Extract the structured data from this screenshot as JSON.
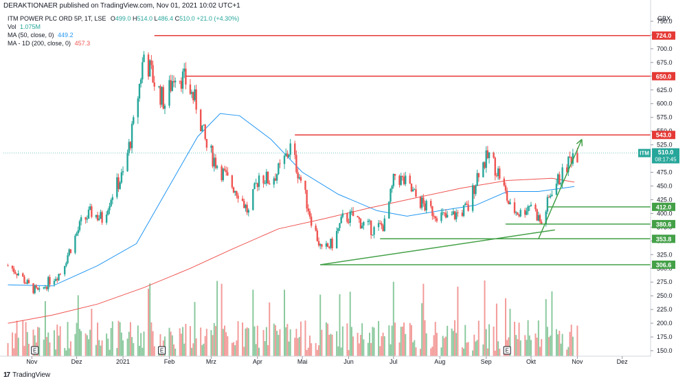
{
  "header": {
    "text": "DERAKTIONAER published on TradingView.com, Nov 01, 2021 10:02 UTC+1"
  },
  "legend": {
    "symbol": "ITM POWER PLC ORD 5P, 1T, LSE",
    "ohlc": {
      "open_label": "O",
      "open": "499.0",
      "high_label": "H",
      "high": "514.0",
      "low_label": "L",
      "low": "486.4",
      "close_label": "C",
      "close": "510.0",
      "change": "+21.0 (+4.30%)"
    },
    "vol_label": "Vol",
    "vol_value": "1.075M",
    "ma50_label": "MA (50, close, 0)",
    "ma50_value": "449.2",
    "ma200_label": "MA - 1D (200, close, 0)",
    "ma200_value": "457.3"
  },
  "currency": "GBX",
  "footer": {
    "brand": "TradingView",
    "logo": "17"
  },
  "colors": {
    "up": "#26a69a",
    "down": "#ef5350",
    "ma50": "#2196f3",
    "ma200": "#ef5350",
    "red_level": "#e53935",
    "green_level": "#43a047",
    "vol_up": "#8bc99e",
    "vol_down": "#f29b99"
  },
  "chart_data": {
    "type": "candlestick",
    "x_axis": {
      "ticks": [
        "Nov",
        "Dez",
        "2021",
        "Feb",
        "Mrz",
        "Apr",
        "Mai",
        "Jun",
        "Jul",
        "Aug",
        "Sep",
        "Okt",
        "Nov",
        "Dez"
      ]
    },
    "y_axis": {
      "range": [
        140,
        770
      ],
      "ticks": [
        750.0,
        725.0,
        700.0,
        675.0,
        650.0,
        625.0,
        600.0,
        575.0,
        550.0,
        525.0,
        475.0,
        450.0,
        425.0,
        400.0,
        375.0,
        350.0,
        325.0,
        300.0,
        275.0,
        250.0,
        225.0,
        200.0,
        175.0,
        150.0
      ]
    },
    "price_label": {
      "symbol": "ITM",
      "value": "510.0",
      "countdown": "08:17:45"
    },
    "resistance_levels": [
      {
        "value": 724.0,
        "label": "724.0",
        "from_date": "2021-01-22"
      },
      {
        "value": 650.0,
        "label": "650.0",
        "from_date": "2021-02-12"
      },
      {
        "value": 543.0,
        "label": "543.0",
        "from_date": "2021-04-26"
      }
    ],
    "support_levels": [
      {
        "value": 412.0,
        "label": "412.0",
        "from_date": "2021-10-12"
      },
      {
        "value": 380.6,
        "label": "380.6",
        "from_date": "2021-09-14"
      },
      {
        "value": 353.8,
        "label": "353.8",
        "from_date": "2021-06-22"
      },
      {
        "value": 306.6,
        "label": "306.6",
        "from_date": "2021-05-13"
      }
    ],
    "trendlines": [
      {
        "from": [
          "2021-05-13",
          306.6
        ],
        "to": [
          "2021-10-17",
          370
        ]
      },
      {
        "from": [
          "2021-10-06",
          353.8
        ],
        "to": [
          "2021-11-04",
          535
        ],
        "arrow": true
      }
    ],
    "event_markers": [
      {
        "label": "E",
        "date": "2020-11-03"
      },
      {
        "label": "E",
        "date": "2021-01-27"
      },
      {
        "label": "E",
        "date": "2021-09-15"
      }
    ],
    "closes": [
      {
        "d": "2020-10-16",
        "c": 305
      },
      {
        "d": "2020-10-23",
        "c": 292
      },
      {
        "d": "2020-10-30",
        "c": 268
      },
      {
        "d": "2020-11-06",
        "c": 255
      },
      {
        "d": "2020-11-13",
        "c": 278
      },
      {
        "d": "2020-11-20",
        "c": 292
      },
      {
        "d": "2020-11-27",
        "c": 338
      },
      {
        "d": "2020-12-04",
        "c": 382
      },
      {
        "d": "2020-12-11",
        "c": 402
      },
      {
        "d": "2020-12-18",
        "c": 390
      },
      {
        "d": "2020-12-25",
        "c": 438
      },
      {
        "d": "2021-01-01",
        "c": 470
      },
      {
        "d": "2021-01-08",
        "c": 560
      },
      {
        "d": "2021-01-15",
        "c": 690
      },
      {
        "d": "2021-01-22",
        "c": 640
      },
      {
        "d": "2021-01-29",
        "c": 600
      },
      {
        "d": "2021-02-05",
        "c": 660
      },
      {
        "d": "2021-02-12",
        "c": 640
      },
      {
        "d": "2021-02-19",
        "c": 600
      },
      {
        "d": "2021-02-26",
        "c": 520
      },
      {
        "d": "2021-03-05",
        "c": 490
      },
      {
        "d": "2021-03-12",
        "c": 460
      },
      {
        "d": "2021-03-19",
        "c": 440
      },
      {
        "d": "2021-03-26",
        "c": 400
      },
      {
        "d": "2021-04-02",
        "c": 470
      },
      {
        "d": "2021-04-09",
        "c": 460
      },
      {
        "d": "2021-04-16",
        "c": 480
      },
      {
        "d": "2021-04-23",
        "c": 520
      },
      {
        "d": "2021-04-30",
        "c": 460
      },
      {
        "d": "2021-05-07",
        "c": 390
      },
      {
        "d": "2021-05-14",
        "c": 330
      },
      {
        "d": "2021-05-21",
        "c": 345
      },
      {
        "d": "2021-05-28",
        "c": 390
      },
      {
        "d": "2021-06-04",
        "c": 395
      },
      {
        "d": "2021-06-11",
        "c": 380
      },
      {
        "d": "2021-06-18",
        "c": 370
      },
      {
        "d": "2021-06-25",
        "c": 380
      },
      {
        "d": "2021-07-02",
        "c": 470
      },
      {
        "d": "2021-07-09",
        "c": 455
      },
      {
        "d": "2021-07-16",
        "c": 430
      },
      {
        "d": "2021-07-23",
        "c": 410
      },
      {
        "d": "2021-07-30",
        "c": 400
      },
      {
        "d": "2021-08-06",
        "c": 390
      },
      {
        "d": "2021-08-13",
        "c": 400
      },
      {
        "d": "2021-08-20",
        "c": 410
      },
      {
        "d": "2021-08-27",
        "c": 480
      },
      {
        "d": "2021-09-03",
        "c": 505
      },
      {
        "d": "2021-09-10",
        "c": 470
      },
      {
        "d": "2021-09-17",
        "c": 410
      },
      {
        "d": "2021-09-24",
        "c": 400
      },
      {
        "d": "2021-10-01",
        "c": 420
      },
      {
        "d": "2021-10-08",
        "c": 380
      },
      {
        "d": "2021-10-15",
        "c": 445
      },
      {
        "d": "2021-10-22",
        "c": 470
      },
      {
        "d": "2021-10-29",
        "c": 510
      }
    ],
    "ma50": [
      {
        "d": "2020-10-16",
        "v": 270
      },
      {
        "d": "2020-11-15",
        "v": 268
      },
      {
        "d": "2020-12-15",
        "v": 305
      },
      {
        "d": "2021-01-10",
        "v": 345
      },
      {
        "d": "2021-02-01",
        "v": 450
      },
      {
        "d": "2021-02-20",
        "v": 540
      },
      {
        "d": "2021-03-07",
        "v": 582
      },
      {
        "d": "2021-03-20",
        "v": 578
      },
      {
        "d": "2021-04-10",
        "v": 535
      },
      {
        "d": "2021-05-01",
        "v": 475
      },
      {
        "d": "2021-05-25",
        "v": 435
      },
      {
        "d": "2021-06-20",
        "v": 405
      },
      {
        "d": "2021-07-10",
        "v": 395
      },
      {
        "d": "2021-08-01",
        "v": 405
      },
      {
        "d": "2021-08-25",
        "v": 415
      },
      {
        "d": "2021-09-15",
        "v": 440
      },
      {
        "d": "2021-10-06",
        "v": 440
      },
      {
        "d": "2021-10-30",
        "v": 449
      }
    ],
    "ma200": [
      {
        "d": "2020-10-16",
        "v": 200
      },
      {
        "d": "2020-11-15",
        "v": 215
      },
      {
        "d": "2020-12-15",
        "v": 235
      },
      {
        "d": "2021-01-15",
        "v": 265
      },
      {
        "d": "2021-02-15",
        "v": 300
      },
      {
        "d": "2021-03-15",
        "v": 335
      },
      {
        "d": "2021-04-15",
        "v": 372
      },
      {
        "d": "2021-05-15",
        "v": 390
      },
      {
        "d": "2021-06-15",
        "v": 410
      },
      {
        "d": "2021-07-15",
        "v": 428
      },
      {
        "d": "2021-08-15",
        "v": 446
      },
      {
        "d": "2021-09-15",
        "v": 460
      },
      {
        "d": "2021-10-15",
        "v": 464
      },
      {
        "d": "2021-10-30",
        "v": 457
      }
    ]
  }
}
